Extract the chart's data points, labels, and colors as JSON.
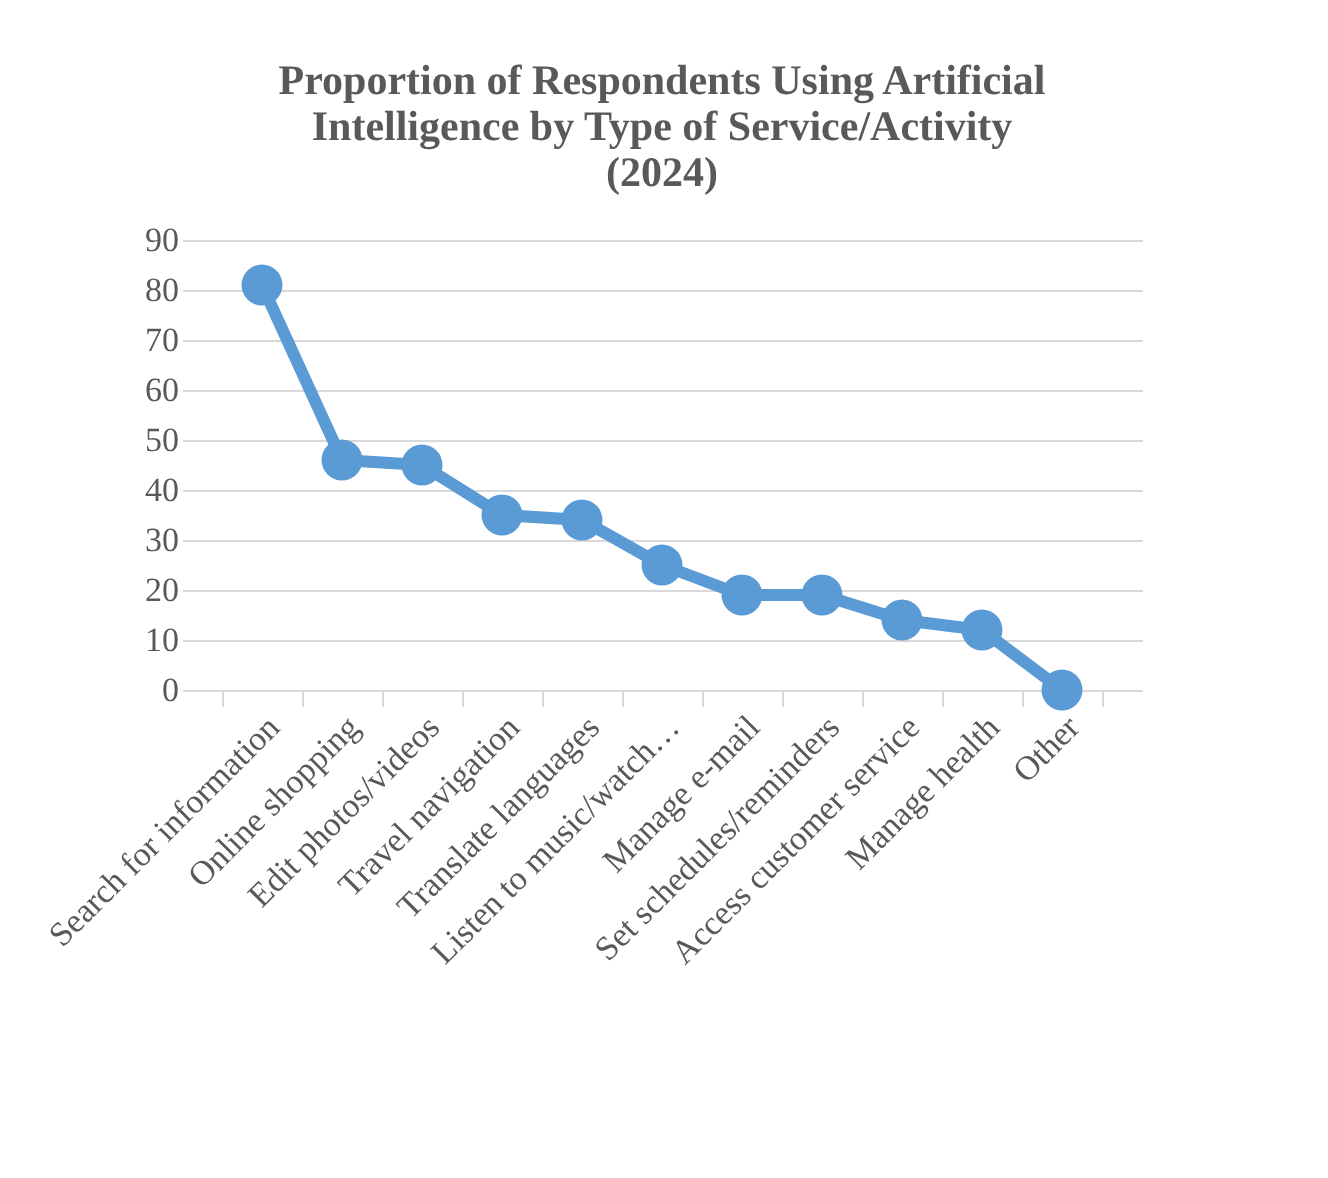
{
  "chart_data": {
    "type": "line",
    "title": "Proportion of Respondents Using Artificial Intelligence by Type of Service/Activity (2024)",
    "categories": [
      "Search for information",
      "Online shopping",
      "Edit photos/videos",
      "Travel navigation",
      "Translate languages",
      "Listen to music/watch…",
      "Manage e-mail",
      "Set schedules/reminders",
      "Access customer service",
      "Manage health",
      "Other"
    ],
    "series": [
      {
        "color": "#5b9bd5",
        "values": [
          81,
          46,
          45,
          35,
          34,
          25,
          19,
          19,
          14,
          12,
          0
        ]
      }
    ],
    "ylim": [
      0,
      90
    ],
    "yticks": [
      0,
      10,
      20,
      30,
      40,
      50,
      60,
      70,
      80,
      90
    ],
    "grid": "y",
    "marker": "circle",
    "line_style": "solid",
    "legend": false
  }
}
